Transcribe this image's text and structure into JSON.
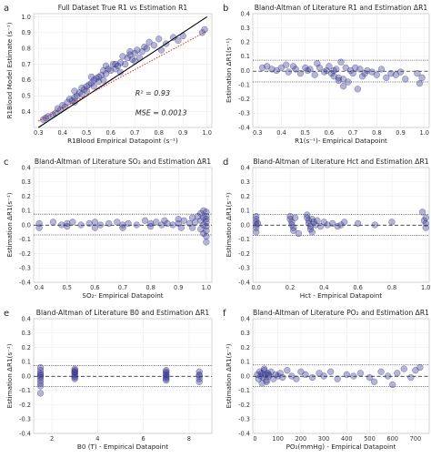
{
  "chart_data": [
    {
      "id": "a",
      "type": "scatter",
      "panel_label": "a",
      "title": "Full Dataset True R1 vs Estimation R1",
      "xlabel": "R1Blood Empirical Datapoint (s⁻¹)",
      "ylabel": "R1Blood Model Estimate (s⁻¹)",
      "xlim": [
        0.28,
        1.02
      ],
      "ylim": [
        0.3,
        1.02
      ],
      "xticks": [
        "0.3",
        "0.4",
        "0.5",
        "0.6",
        "0.7",
        "0.8",
        "0.9",
        "1.0"
      ],
      "yticks": [
        "0.4",
        "0.5",
        "0.6",
        "0.7",
        "0.8",
        "0.9",
        "1.0"
      ],
      "annotations": [
        "R² = 0.93",
        "MSE = 0.0013"
      ],
      "lines": [
        {
          "style": "solid",
          "color": "#000000",
          "x": [
            0.3,
            1.0
          ],
          "y": [
            0.3,
            1.0
          ]
        },
        {
          "style": "dotted",
          "color": "#e0302a",
          "x": [
            0.3,
            1.0
          ],
          "y": [
            0.34,
            0.91
          ]
        }
      ],
      "x": [
        0.32,
        0.33,
        0.34,
        0.36,
        0.37,
        0.38,
        0.39,
        0.4,
        0.41,
        0.42,
        0.43,
        0.44,
        0.45,
        0.45,
        0.46,
        0.47,
        0.48,
        0.48,
        0.49,
        0.5,
        0.5,
        0.51,
        0.52,
        0.53,
        0.53,
        0.54,
        0.55,
        0.56,
        0.57,
        0.57,
        0.58,
        0.59,
        0.6,
        0.61,
        0.62,
        0.63,
        0.64,
        0.65,
        0.66,
        0.67,
        0.68,
        0.69,
        0.7,
        0.71,
        0.72,
        0.73,
        0.74,
        0.75,
        0.76,
        0.78,
        0.8,
        0.81,
        0.83,
        0.86,
        0.88,
        0.9,
        0.45,
        0.52,
        0.58,
        0.64,
        0.7,
        0.55,
        0.62,
        0.68,
        0.98,
        0.99
      ],
      "y": [
        0.35,
        0.36,
        0.37,
        0.38,
        0.39,
        0.42,
        0.41,
        0.44,
        0.43,
        0.46,
        0.48,
        0.47,
        0.49,
        0.53,
        0.5,
        0.52,
        0.51,
        0.55,
        0.54,
        0.56,
        0.53,
        0.57,
        0.58,
        0.6,
        0.56,
        0.61,
        0.62,
        0.63,
        0.66,
        0.6,
        0.64,
        0.67,
        0.66,
        0.7,
        0.67,
        0.69,
        0.71,
        0.75,
        0.7,
        0.74,
        0.76,
        0.73,
        0.77,
        0.79,
        0.74,
        0.78,
        0.81,
        0.8,
        0.84,
        0.82,
        0.86,
        0.79,
        0.83,
        0.87,
        0.85,
        0.88,
        0.46,
        0.62,
        0.69,
        0.65,
        0.72,
        0.59,
        0.7,
        0.78,
        0.9,
        0.92
      ]
    },
    {
      "id": "b",
      "type": "scatter",
      "panel_label": "b",
      "title": "Bland-Altman of Literature R1 and Estimation ΔR1",
      "xlabel": "R1(s⁻¹)- Empirical Datapoint",
      "ylabel": "Estimation ΔR1(s⁻¹)",
      "xlim": [
        0.28,
        1.02
      ],
      "ylim": [
        -0.4,
        0.4
      ],
      "xticks": [
        "0.3",
        "0.4",
        "0.5",
        "0.6",
        "0.7",
        "0.8",
        "0.9",
        "1.0"
      ],
      "yticks": [
        "-0.4",
        "-0.3",
        "-0.2",
        "-0.1",
        "0.0",
        "0.1",
        "0.2",
        "0.3",
        "0.4"
      ],
      "hlines": [
        {
          "y": 0.073,
          "style": "dotted"
        },
        {
          "y": -0.005,
          "style": "dashed"
        },
        {
          "y": -0.08,
          "style": "dotted"
        }
      ],
      "x": [
        0.32,
        0.34,
        0.36,
        0.38,
        0.4,
        0.42,
        0.43,
        0.45,
        0.46,
        0.48,
        0.5,
        0.51,
        0.52,
        0.54,
        0.55,
        0.56,
        0.58,
        0.59,
        0.6,
        0.61,
        0.62,
        0.63,
        0.64,
        0.65,
        0.66,
        0.67,
        0.68,
        0.69,
        0.7,
        0.71,
        0.72,
        0.73,
        0.74,
        0.75,
        0.76,
        0.78,
        0.8,
        0.82,
        0.84,
        0.86,
        0.88,
        0.9,
        0.92,
        0.97,
        0.98,
        0.99,
        0.64,
        0.66,
        0.62
      ],
      "y": [
        0.02,
        0.03,
        0.01,
        0.0,
        0.02,
        0.04,
        -0.01,
        0.03,
        0.01,
        -0.02,
        0.02,
        0.0,
        0.01,
        -0.03,
        0.05,
        0.02,
        -0.01,
        0.0,
        0.03,
        -0.02,
        -0.04,
        0.01,
        -0.05,
        0.06,
        -0.06,
        0.02,
        -0.08,
        0.0,
        -0.02,
        0.02,
        -0.13,
        0.01,
        -0.04,
        -0.02,
        0.0,
        -0.01,
        -0.03,
        0.01,
        -0.05,
        -0.02,
        -0.03,
        -0.01,
        -0.06,
        -0.02,
        -0.09,
        -0.05,
        -0.07,
        -0.11,
        0.0
      ]
    },
    {
      "id": "c",
      "type": "scatter",
      "panel_label": "c",
      "title": "Bland-Altman of Literature SO₂ and Estimation ΔR1",
      "xlabel": "SO₂- Empirical Datapoint",
      "ylabel": "Estimation ΔR1(s⁻¹)",
      "xlim": [
        0.38,
        1.02
      ],
      "ylim": [
        -0.4,
        0.4
      ],
      "xticks": [
        "0.4",
        "0.5",
        "0.6",
        "0.7",
        "0.8",
        "0.9",
        "1.0"
      ],
      "yticks": [
        "-0.4",
        "-0.3",
        "-0.2",
        "-0.1",
        "0.0",
        "0.1",
        "0.2",
        "0.3",
        "0.4"
      ],
      "hlines": [
        {
          "y": 0.075,
          "style": "dotted"
        },
        {
          "y": -0.002,
          "style": "dashed"
        },
        {
          "y": -0.07,
          "style": "dotted"
        }
      ],
      "x": [
        0.4,
        0.4,
        0.45,
        0.48,
        0.5,
        0.5,
        0.52,
        0.55,
        0.58,
        0.6,
        0.6,
        0.62,
        0.65,
        0.68,
        0.7,
        0.7,
        0.72,
        0.75,
        0.78,
        0.8,
        0.8,
        0.82,
        0.84,
        0.85,
        0.86,
        0.88,
        0.9,
        0.9,
        0.91,
        0.92,
        0.94,
        0.95,
        0.95,
        0.96,
        0.97,
        0.98,
        0.98,
        0.98,
        0.99,
        0.99,
        0.99,
        0.99,
        1.0,
        1.0,
        1.0,
        1.0,
        1.0,
        1.0,
        1.0,
        1.0
      ],
      "y": [
        0.01,
        -0.02,
        0.02,
        0.0,
        0.01,
        -0.01,
        0.02,
        0.0,
        0.01,
        -0.02,
        0.02,
        0.0,
        0.01,
        0.02,
        0.0,
        -0.02,
        0.01,
        0.0,
        0.03,
        0.01,
        -0.01,
        0.02,
        0.0,
        0.03,
        0.01,
        0.0,
        0.04,
        0.01,
        -0.02,
        0.03,
        0.01,
        0.05,
        -0.02,
        0.02,
        0.06,
        0.08,
        0.03,
        -0.03,
        0.1,
        0.05,
        0.0,
        -0.06,
        0.09,
        0.04,
        0.02,
        -0.01,
        -0.04,
        -0.08,
        -0.12,
        0.06
      ]
    },
    {
      "id": "d",
      "type": "scatter",
      "panel_label": "d",
      "title": "Bland-Altman of Literature Hct and Estimation ΔR1",
      "xlabel": "Hct - Empirical Datapoint",
      "ylabel": "Estimation ΔR1(s⁻¹)",
      "xlim": [
        -0.02,
        1.02
      ],
      "ylim": [
        -0.4,
        0.4
      ],
      "xticks": [
        "0.0",
        "0.2",
        "0.4",
        "0.6",
        "0.8",
        "1.0"
      ],
      "yticks": [
        "-0.4",
        "-0.3",
        "-0.2",
        "-0.1",
        "0.0",
        "0.1",
        "0.2",
        "0.3",
        "0.4"
      ],
      "hlines": [
        {
          "y": 0.073,
          "style": "dotted"
        },
        {
          "y": -0.002,
          "style": "dashed"
        },
        {
          "y": -0.072,
          "style": "dotted"
        }
      ],
      "x": [
        0.0,
        0.0,
        0.0,
        0.0,
        0.0,
        0.0,
        0.01,
        0.2,
        0.2,
        0.21,
        0.21,
        0.22,
        0.22,
        0.23,
        0.25,
        0.3,
        0.3,
        0.31,
        0.31,
        0.32,
        0.32,
        0.33,
        0.33,
        0.34,
        0.35,
        0.36,
        0.38,
        0.4,
        0.42,
        0.45,
        0.48,
        0.5,
        0.52,
        0.6,
        0.7,
        0.8,
        0.98,
        0.99,
        1.0,
        1.0,
        1.0
      ],
      "y": [
        0.06,
        0.02,
        0.0,
        -0.02,
        -0.05,
        0.04,
        0.01,
        0.06,
        0.04,
        0.02,
        0.0,
        -0.02,
        -0.04,
        0.05,
        -0.06,
        0.07,
        0.05,
        0.03,
        0.01,
        -0.01,
        -0.03,
        0.04,
        -0.05,
        0.02,
        0.0,
        0.03,
        -0.01,
        0.02,
        0.0,
        0.01,
        -0.01,
        0.0,
        0.02,
        0.01,
        0.0,
        0.02,
        0.09,
        0.03,
        0.01,
        -0.02,
        0.05
      ]
    },
    {
      "id": "e",
      "type": "scatter",
      "panel_label": "e",
      "title": "Bland-Altman of Literature B0 and Estimation ΔR1",
      "xlabel": "B0 (T) - Empirical Datapoint",
      "ylabel": "Estimation ΔR1(s⁻¹)",
      "xlim": [
        1.2,
        9.0
      ],
      "ylim": [
        -0.4,
        0.4
      ],
      "xticks": [
        "2",
        "4",
        "6",
        "8"
      ],
      "yticks": [
        "-0.4",
        "-0.3",
        "-0.2",
        "-0.1",
        "0.0",
        "0.1",
        "0.2",
        "0.3",
        "0.4"
      ],
      "hlines": [
        {
          "y": 0.073,
          "style": "dotted"
        },
        {
          "y": -0.002,
          "style": "dashed"
        },
        {
          "y": -0.072,
          "style": "dotted"
        }
      ],
      "x": [
        1.5,
        1.5,
        1.5,
        1.5,
        1.5,
        1.5,
        1.5,
        1.5,
        1.5,
        1.5,
        3.0,
        3.0,
        3.0,
        3.0,
        3.0,
        3.0,
        3.0,
        3.0,
        3.0,
        7.0,
        7.0,
        7.0,
        7.0,
        7.0,
        7.0,
        7.0,
        7.0,
        8.45,
        8.45,
        8.45,
        8.45,
        8.45
      ],
      "y": [
        0.06,
        0.04,
        0.02,
        0.01,
        0.0,
        -0.01,
        -0.03,
        -0.05,
        -0.07,
        -0.12,
        0.05,
        0.04,
        0.03,
        0.02,
        0.01,
        0.0,
        -0.01,
        -0.02,
        0.03,
        0.04,
        0.03,
        0.02,
        0.01,
        0.0,
        -0.01,
        -0.02,
        -0.03,
        0.03,
        0.01,
        0.0,
        -0.02,
        -0.04
      ]
    },
    {
      "id": "f",
      "type": "scatter",
      "panel_label": "f",
      "title": "Bland-Altman of Literature PO₂ and Estimation ΔR1",
      "xlabel": "PO₂(mmHg) - Empirical Datapoint",
      "ylabel": "Estimation ΔR1(s⁻¹)",
      "xlim": [
        -10,
        760
      ],
      "ylim": [
        -0.4,
        0.4
      ],
      "xticks": [
        "0",
        "100",
        "200",
        "300",
        "400",
        "500",
        "600",
        "700"
      ],
      "yticks": [
        "-0.4",
        "-0.3",
        "-0.2",
        "-0.1",
        "0.0",
        "0.1",
        "0.2",
        "0.3",
        "0.4"
      ],
      "hlines": [
        {
          "y": 0.078,
          "style": "dotted"
        },
        {
          "y": -0.002,
          "style": "dashed"
        },
        {
          "y": -0.072,
          "style": "dotted"
        }
      ],
      "x": [
        10,
        15,
        20,
        25,
        30,
        35,
        40,
        45,
        50,
        55,
        60,
        70,
        80,
        90,
        100,
        110,
        120,
        140,
        160,
        180,
        200,
        220,
        250,
        280,
        300,
        330,
        360,
        400,
        430,
        460,
        500,
        520,
        550,
        580,
        600,
        620,
        650,
        680,
        700,
        720,
        30,
        40,
        50,
        60
      ],
      "y": [
        0.01,
        -0.02,
        0.03,
        0.0,
        0.02,
        -0.01,
        0.04,
        0.01,
        -0.03,
        0.02,
        0.0,
        0.03,
        -0.02,
        0.01,
        0.0,
        0.02,
        -0.01,
        0.04,
        0.0,
        -0.02,
        0.03,
        0.01,
        -0.01,
        0.02,
        0.0,
        0.03,
        -0.02,
        0.01,
        0.0,
        0.02,
        -0.01,
        -0.04,
        0.03,
        0.0,
        -0.06,
        0.02,
        0.05,
        -0.01,
        0.04,
        0.06,
        -0.05,
        0.05,
        -0.04,
        0.01
      ]
    }
  ]
}
